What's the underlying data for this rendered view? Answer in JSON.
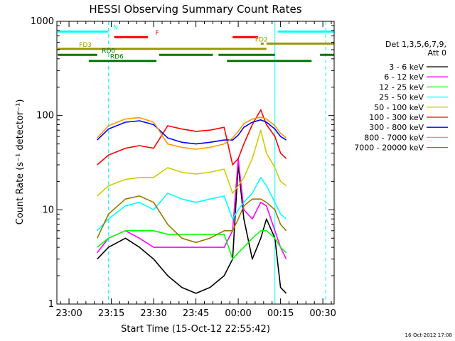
{
  "chart_data": {
    "type": "line",
    "title": "HESSI Observing Summary Count Rates",
    "xlabel": "Start Time (15-Oct-12 22:55:42)",
    "ylabel": "Count Rate (s⁻¹ detector⁻¹)",
    "footer": "16-Oct-2012 17:08",
    "y_scale": "log",
    "ylim": [
      1,
      1000
    ],
    "xlim": [
      "22:55:42",
      "00:34:00"
    ],
    "x_ticks": [
      "23:00",
      "23:15",
      "23:30",
      "23:45",
      "00:00",
      "00:15",
      "00:30"
    ],
    "y_ticks": [
      "1",
      "10",
      "100",
      "1000"
    ],
    "legend_title": [
      "Det 1,3,5,6,7,9,",
      "Att 0"
    ],
    "legend_position": "right",
    "series": [
      {
        "name": "3 - 6 keV",
        "color": "#000000",
        "x": [
          "23:10",
          "23:14",
          "23:20",
          "23:25",
          "23:30",
          "23:35",
          "23:40",
          "23:45",
          "23:50",
          "23:55",
          "23:58",
          "00:00",
          "00:02",
          "00:05",
          "00:08",
          "00:10",
          "00:13",
          "00:15",
          "00:17"
        ],
        "y": [
          3,
          4,
          5,
          4,
          3,
          2,
          1.5,
          1.3,
          1.5,
          2,
          3,
          30,
          8,
          3,
          5,
          8,
          5,
          1.5,
          1.3
        ]
      },
      {
        "name": "6 - 12 keV",
        "color": "#ff00ff",
        "x": [
          "23:10",
          "23:14",
          "23:20",
          "23:25",
          "23:30",
          "23:35",
          "23:40",
          "23:45",
          "23:50",
          "23:55",
          "23:58",
          "00:00",
          "00:02",
          "00:05",
          "00:08",
          "00:10",
          "00:13",
          "00:15",
          "00:17"
        ],
        "y": [
          3.5,
          5,
          6,
          5,
          4,
          4,
          4,
          4,
          4,
          4,
          6,
          35,
          10,
          8,
          12,
          11,
          6,
          4,
          3
        ]
      },
      {
        "name": "12 - 25 keV",
        "color": "#00ff00",
        "x": [
          "23:10",
          "23:14",
          "23:20",
          "23:25",
          "23:30",
          "23:35",
          "23:40",
          "23:45",
          "23:50",
          "23:55",
          "23:58",
          "00:00",
          "00:02",
          "00:05",
          "00:08",
          "00:10",
          "00:13",
          "00:15",
          "00:17"
        ],
        "y": [
          4,
          5,
          6,
          6,
          6,
          5.5,
          5.5,
          5.5,
          5.5,
          5.5,
          3,
          3.5,
          4,
          5,
          6,
          6,
          5,
          4,
          3.5
        ]
      },
      {
        "name": "25 - 50 keV",
        "color": "#00ffff",
        "x": [
          "23:10",
          "23:14",
          "23:20",
          "23:25",
          "23:30",
          "23:35",
          "23:40",
          "23:45",
          "23:50",
          "23:55",
          "23:58",
          "00:00",
          "00:02",
          "00:05",
          "00:08",
          "00:10",
          "00:13",
          "00:15",
          "00:17"
        ],
        "y": [
          6,
          8,
          11,
          12,
          10,
          15,
          13,
          12,
          13,
          14,
          8,
          10,
          12,
          15,
          22,
          18,
          12,
          9,
          8
        ]
      },
      {
        "name": "50 - 100 keV",
        "color": "#cccc00",
        "x": [
          "23:10",
          "23:14",
          "23:20",
          "23:25",
          "23:30",
          "23:35",
          "23:40",
          "23:45",
          "23:50",
          "23:55",
          "23:58",
          "00:00",
          "00:02",
          "00:05",
          "00:08",
          "00:10",
          "00:13",
          "00:15",
          "00:17"
        ],
        "y": [
          14,
          18,
          21,
          22,
          22,
          28,
          25,
          24,
          25,
          27,
          15,
          18,
          22,
          35,
          70,
          40,
          28,
          20,
          18
        ]
      },
      {
        "name": "100 - 300 keV",
        "color": "#ff0000",
        "x": [
          "23:10",
          "23:14",
          "23:20",
          "23:25",
          "23:30",
          "23:35",
          "23:40",
          "23:45",
          "23:50",
          "23:55",
          "23:58",
          "00:00",
          "00:02",
          "00:05",
          "00:08",
          "00:10",
          "00:13",
          "00:15",
          "00:17"
        ],
        "y": [
          30,
          38,
          45,
          48,
          45,
          78,
          72,
          68,
          70,
          75,
          30,
          35,
          50,
          80,
          115,
          80,
          60,
          40,
          35
        ]
      },
      {
        "name": "300 - 800 keV",
        "color": "#0000ff",
        "x": [
          "23:10",
          "23:14",
          "23:20",
          "23:25",
          "23:30",
          "23:35",
          "23:40",
          "23:45",
          "23:50",
          "23:55",
          "23:58",
          "00:00",
          "00:02",
          "00:05",
          "00:08",
          "00:10",
          "00:13",
          "00:15",
          "00:17"
        ],
        "y": [
          55,
          72,
          85,
          88,
          80,
          58,
          52,
          50,
          52,
          55,
          55,
          62,
          75,
          85,
          90,
          85,
          72,
          60,
          55
        ]
      },
      {
        "name": "800 - 7000 keV",
        "color": "#ff9900",
        "x": [
          "23:10",
          "23:14",
          "23:20",
          "23:25",
          "23:30",
          "23:35",
          "23:40",
          "23:45",
          "23:50",
          "23:55",
          "23:58",
          "00:00",
          "00:02",
          "00:05",
          "00:08",
          "00:10",
          "00:13",
          "00:15",
          "00:17"
        ],
        "y": [
          58,
          78,
          92,
          95,
          85,
          50,
          46,
          44,
          46,
          50,
          58,
          68,
          82,
          92,
          96,
          92,
          78,
          65,
          58
        ]
      },
      {
        "name": "7000 - 20000 keV",
        "color": "#997700",
        "x": [
          "23:10",
          "23:14",
          "23:20",
          "23:25",
          "23:30",
          "23:35",
          "23:40",
          "23:45",
          "23:50",
          "23:55",
          "23:58",
          "00:00",
          "00:02",
          "00:05",
          "00:08",
          "00:10",
          "00:13",
          "00:15",
          "00:17"
        ],
        "y": [
          5,
          9,
          13,
          14,
          12,
          7,
          5,
          4.5,
          5,
          6,
          6,
          8,
          11,
          13,
          13,
          12,
          10,
          7,
          6
        ]
      }
    ],
    "status_bars": [
      {
        "label": "N",
        "color": "#00ffff",
        "level": 780,
        "segments": [
          [
            "22:56",
            "23:14"
          ],
          [
            "00:14",
            "00:34"
          ]
        ]
      },
      {
        "label": "F",
        "color": "#ff0000",
        "level": 680,
        "segments": [
          [
            "23:16",
            "23:28"
          ],
          [
            "23:58",
            "00:07"
          ]
        ]
      },
      {
        "label": "FD2",
        "color": "#999900",
        "level": 580,
        "segments": [
          [
            "00:08",
            "00:09"
          ],
          [
            "00:10",
            "00:34"
          ]
        ]
      },
      {
        "label": "FD3",
        "color": "#999900",
        "level": 510,
        "segments": [
          [
            "22:56",
            "00:10"
          ]
        ]
      },
      {
        "label": "RD0",
        "color": "#007700",
        "level": 440,
        "segments": [
          [
            "22:56",
            "23:10"
          ],
          [
            "23:32",
            "23:51"
          ],
          [
            "23:53",
            "00:13"
          ],
          [
            "00:29",
            "00:34"
          ]
        ]
      },
      {
        "label": "RD6",
        "color": "#007700",
        "level": 380,
        "segments": [
          [
            "23:07",
            "23:31"
          ],
          [
            "23:56",
            "00:26"
          ]
        ]
      }
    ],
    "dashed_cyan_lines": [
      "23:14",
      "00:31"
    ],
    "solid_cyan_lines": [
      "00:13"
    ],
    "grid": false
  }
}
